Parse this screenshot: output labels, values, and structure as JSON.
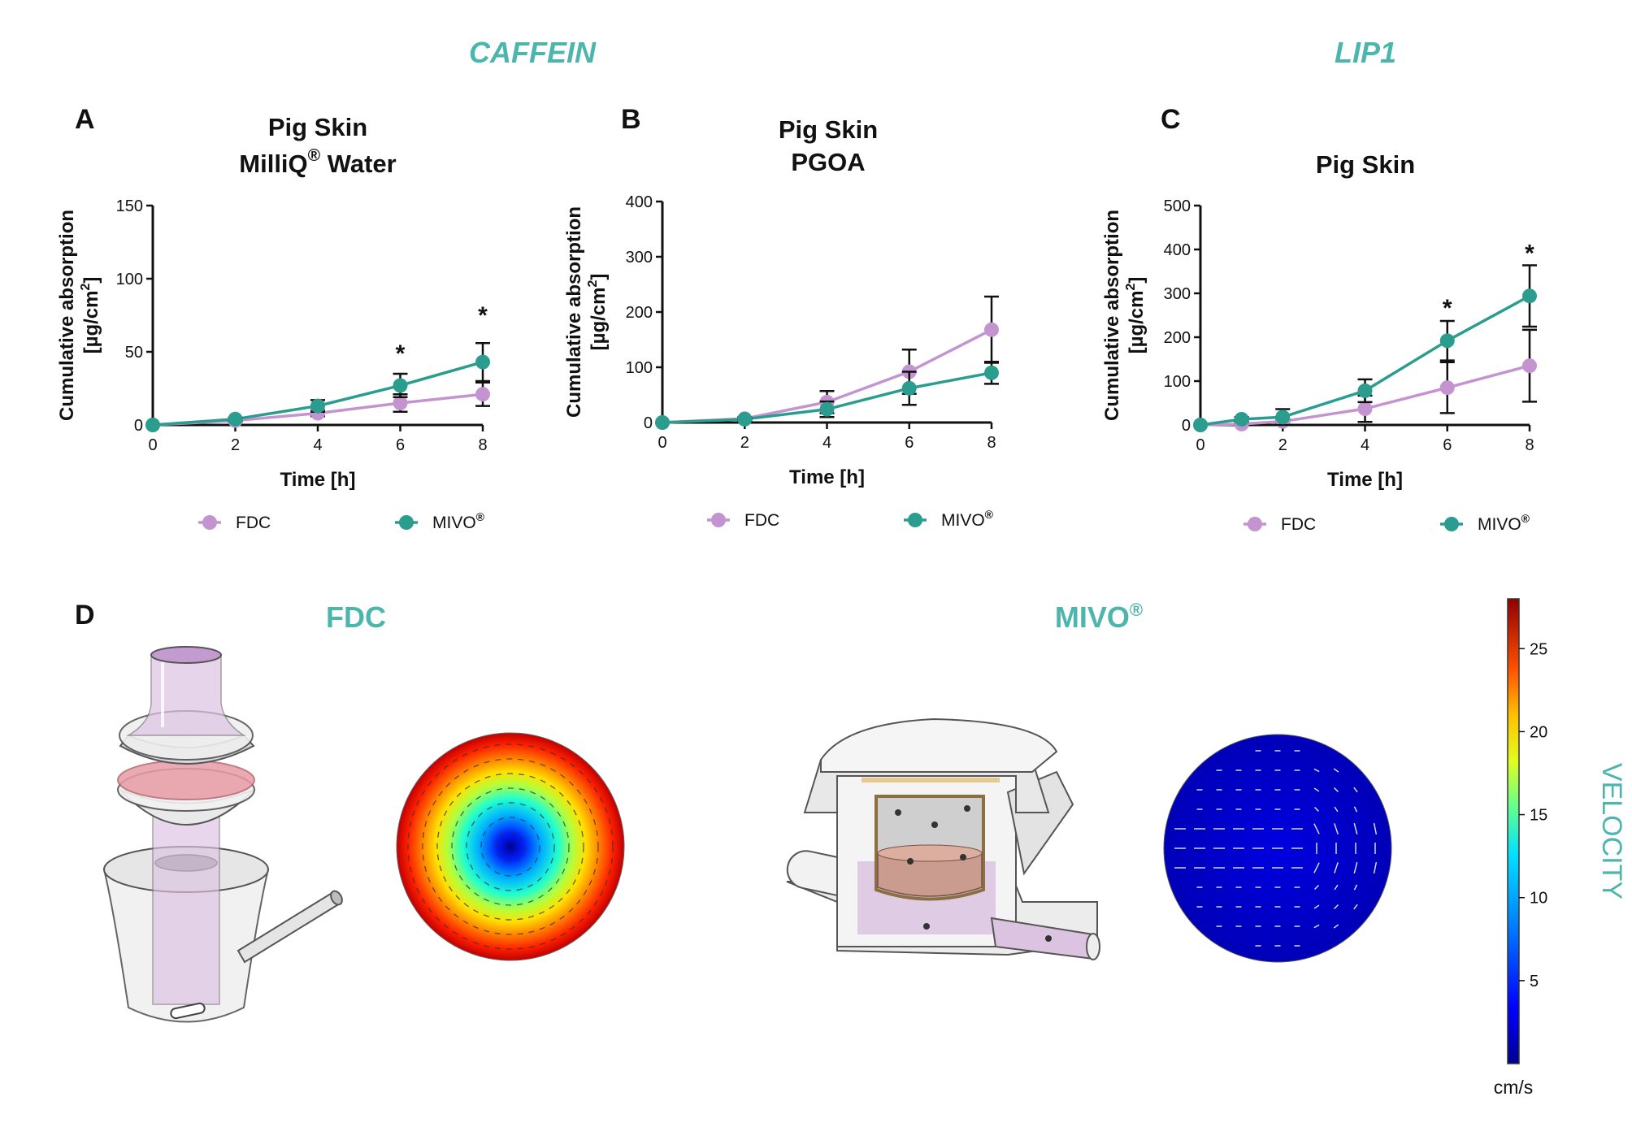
{
  "headers": {
    "caffein": "CAFFEIN",
    "lip1": "LIP1"
  },
  "legend": {
    "fdc": "FDC",
    "mivo": "MIVO",
    "reg": "®"
  },
  "colors": {
    "fdc": "#c394cf",
    "mivo": "#2a9d8f",
    "accent": "#4db6ac"
  },
  "chart_data": [
    {
      "type": "line",
      "panel": "A",
      "title_line1": "Pig Skin",
      "title_line2": "MilliQ",
      "title_reg": "®",
      "title_line2_suffix": " Water",
      "xlabel": "Time [h]",
      "ylabel_line1": "Cumulative absorption",
      "ylabel_line2": "[µg/cm",
      "ylabel_sup": "2",
      "ylabel_close": "]",
      "xlim": [
        0,
        8
      ],
      "ylim": [
        0,
        150
      ],
      "xticks": [
        "0",
        "2",
        "4",
        "6",
        "8"
      ],
      "yticks": [
        "0",
        "50",
        "100",
        "150"
      ],
      "series": [
        {
          "name": "FDC",
          "x": [
            0,
            2,
            4,
            6,
            8
          ],
          "y": [
            0,
            3,
            8,
            15,
            21
          ],
          "err": [
            0,
            1,
            2,
            6,
            8
          ]
        },
        {
          "name": "MIVO",
          "x": [
            0,
            2,
            4,
            6,
            8
          ],
          "y": [
            0,
            4,
            13,
            27,
            43
          ],
          "err": [
            0,
            1,
            4,
            8,
            13
          ]
        }
      ],
      "annotations": [
        {
          "x": 6,
          "y": 50,
          "text": "*"
        },
        {
          "x": 8,
          "y": 76,
          "text": "*"
        }
      ]
    },
    {
      "type": "line",
      "panel": "B",
      "title_line1": "Pig Skin",
      "title_line2": "PGOA",
      "xlabel": "Time [h]",
      "ylabel_line1": "Cumulative absorption",
      "ylabel_line2": "[µg/cm",
      "ylabel_sup": "2",
      "ylabel_close": "]",
      "xlim": [
        0,
        8
      ],
      "ylim": [
        0,
        400
      ],
      "xticks": [
        "0",
        "2",
        "4",
        "6",
        "8"
      ],
      "yticks": [
        "0",
        "100",
        "200",
        "300",
        "400"
      ],
      "series": [
        {
          "name": "FDC",
          "x": [
            0,
            2,
            4,
            6,
            8
          ],
          "y": [
            0,
            7,
            37,
            92,
            168
          ],
          "err": [
            0,
            3,
            20,
            40,
            60
          ]
        },
        {
          "name": "MIVO",
          "x": [
            0,
            2,
            4,
            6,
            8
          ],
          "y": [
            0,
            6,
            24,
            62,
            90
          ],
          "err": [
            0,
            2,
            14,
            30,
            20
          ]
        }
      ],
      "annotations": []
    },
    {
      "type": "line",
      "panel": "C",
      "title_line1": "Pig Skin",
      "xlabel": "Time [h]",
      "ylabel_line1": "Cumulative absorption",
      "ylabel_line2": "[µg/cm",
      "ylabel_sup": "2",
      "ylabel_close": "]",
      "xlim": [
        0,
        8
      ],
      "ylim": [
        0,
        500
      ],
      "xticks": [
        "0",
        "2",
        "4",
        "6",
        "8"
      ],
      "yticks": [
        "0",
        "100",
        "200",
        "300",
        "400",
        "500"
      ],
      "series": [
        {
          "name": "FDC",
          "x": [
            0,
            1,
            2,
            4,
            6,
            8
          ],
          "y": [
            0,
            2,
            8,
            37,
            85,
            135
          ],
          "err": [
            0,
            2,
            4,
            30,
            58,
            82
          ]
        },
        {
          "name": "MIVO",
          "x": [
            0,
            1,
            2,
            4,
            6,
            8
          ],
          "y": [
            0,
            13,
            18,
            78,
            192,
            294
          ],
          "err": [
            0,
            5,
            18,
            26,
            45,
            70
          ]
        }
      ],
      "annotations": [
        {
          "x": 6,
          "y": 270,
          "text": "*"
        },
        {
          "x": 8,
          "y": 395,
          "text": "*"
        }
      ]
    }
  ],
  "panel_d": {
    "label": "D",
    "fdc_title": "FDC",
    "mivo_title": "MIVO",
    "mivo_reg": "®",
    "colorbar": {
      "label": "VELOCITY",
      "unit": "cm/s",
      "min": 0,
      "max": 28,
      "ticks": [
        "5",
        "10",
        "15",
        "20",
        "25"
      ],
      "tick_values": [
        5,
        10,
        15,
        20,
        25
      ]
    }
  }
}
